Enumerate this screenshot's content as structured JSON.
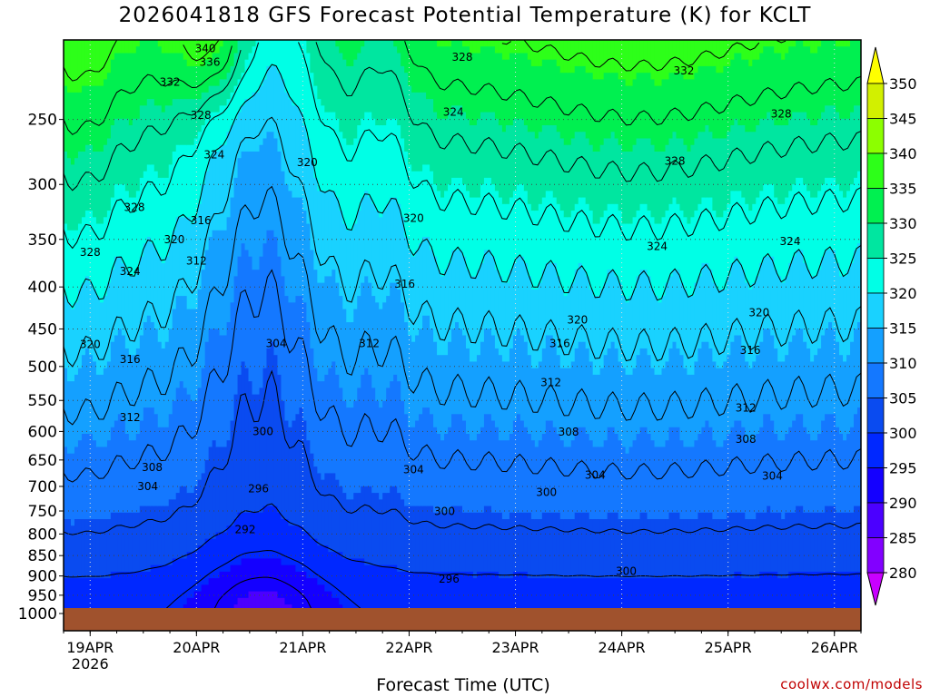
{
  "chart_data": {
    "type": "heatmap",
    "title": "2026041818 GFS Forecast Potential Temperature (K) for KCLT",
    "xlabel": "Forecast Time (UTC)",
    "ylabel": "",
    "credit": "coolwx.com/models",
    "x_ticks": [
      {
        "label": "19APR",
        "sublabel": "2026",
        "hour": 6
      },
      {
        "label": "20APR",
        "hour": 30
      },
      {
        "label": "21APR",
        "hour": 54
      },
      {
        "label": "22APR",
        "hour": 78
      },
      {
        "label": "23APR",
        "hour": 102
      },
      {
        "label": "24APR",
        "hour": 126
      },
      {
        "label": "25APR",
        "hour": 150
      },
      {
        "label": "26APR",
        "hour": 174
      }
    ],
    "xlim": [
      0,
      180
    ],
    "y_ticks": [
      "250",
      "300",
      "350",
      "400",
      "450",
      "500",
      "550",
      "600",
      "650",
      "700",
      "750",
      "800",
      "850",
      "900",
      "950",
      "1000"
    ],
    "ylim_hpa": [
      1000,
      200
    ],
    "colorbar": {
      "levels": [
        "280",
        "285",
        "290",
        "295",
        "300",
        "305",
        "310",
        "315",
        "320",
        "325",
        "330",
        "335",
        "340",
        "345",
        "350"
      ],
      "colors": [
        "#c800ff",
        "#8200ff",
        "#4b00ff",
        "#1400ff",
        "#0028ff",
        "#0a4bf0",
        "#1478ff",
        "#14a0ff",
        "#19d2ff",
        "#00ffe6",
        "#00e6a0",
        "#00f050",
        "#2dff19",
        "#8cff00",
        "#d2f000",
        "#ffff00"
      ]
    },
    "contour_labels": [
      {
        "text": "340",
        "t": 32,
        "p": 205
      },
      {
        "text": "336",
        "t": 33,
        "p": 213
      },
      {
        "text": "332",
        "t": 24,
        "p": 225
      },
      {
        "text": "328",
        "t": 90,
        "p": 210
      },
      {
        "text": "332",
        "t": 140,
        "p": 218
      },
      {
        "text": "328",
        "t": 31,
        "p": 247
      },
      {
        "text": "324",
        "t": 88,
        "p": 245
      },
      {
        "text": "328",
        "t": 162,
        "p": 246
      },
      {
        "text": "324",
        "t": 34,
        "p": 276
      },
      {
        "text": "320",
        "t": 55,
        "p": 282
      },
      {
        "text": "328",
        "t": 138,
        "p": 281
      },
      {
        "text": "328",
        "t": 16,
        "p": 320
      },
      {
        "text": "316",
        "t": 31,
        "p": 332
      },
      {
        "text": "320",
        "t": 79,
        "p": 330
      },
      {
        "text": "320",
        "t": 25,
        "p": 350
      },
      {
        "text": "324",
        "t": 134,
        "p": 357
      },
      {
        "text": "324",
        "t": 164,
        "p": 352
      },
      {
        "text": "328",
        "t": 6,
        "p": 363
      },
      {
        "text": "312",
        "t": 30,
        "p": 372
      },
      {
        "text": "324",
        "t": 15,
        "p": 383
      },
      {
        "text": "316",
        "t": 77,
        "p": 397
      },
      {
        "text": "320",
        "t": 116,
        "p": 439
      },
      {
        "text": "320",
        "t": 157,
        "p": 430
      },
      {
        "text": "304",
        "t": 48,
        "p": 469
      },
      {
        "text": "312",
        "t": 69,
        "p": 469
      },
      {
        "text": "320",
        "t": 6,
        "p": 470
      },
      {
        "text": "316",
        "t": 112,
        "p": 469
      },
      {
        "text": "316",
        "t": 15,
        "p": 490
      },
      {
        "text": "316",
        "t": 155,
        "p": 478
      },
      {
        "text": "312",
        "t": 110,
        "p": 523
      },
      {
        "text": "312",
        "t": 15,
        "p": 577
      },
      {
        "text": "312",
        "t": 154,
        "p": 562
      },
      {
        "text": "300",
        "t": 45,
        "p": 600
      },
      {
        "text": "308",
        "t": 114,
        "p": 601
      },
      {
        "text": "308",
        "t": 154,
        "p": 613
      },
      {
        "text": "308",
        "t": 20,
        "p": 664
      },
      {
        "text": "304",
        "t": 79,
        "p": 668
      },
      {
        "text": "304",
        "t": 120,
        "p": 678
      },
      {
        "text": "304",
        "t": 160,
        "p": 680
      },
      {
        "text": "304",
        "t": 19,
        "p": 700
      },
      {
        "text": "296",
        "t": 44,
        "p": 705
      },
      {
        "text": "300",
        "t": 109,
        "p": 712
      },
      {
        "text": "300",
        "t": 86,
        "p": 751
      },
      {
        "text": "292",
        "t": 41,
        "p": 790
      },
      {
        "text": "300",
        "t": 127,
        "p": 888
      },
      {
        "text": "296",
        "t": 87,
        "p": 908
      }
    ]
  }
}
